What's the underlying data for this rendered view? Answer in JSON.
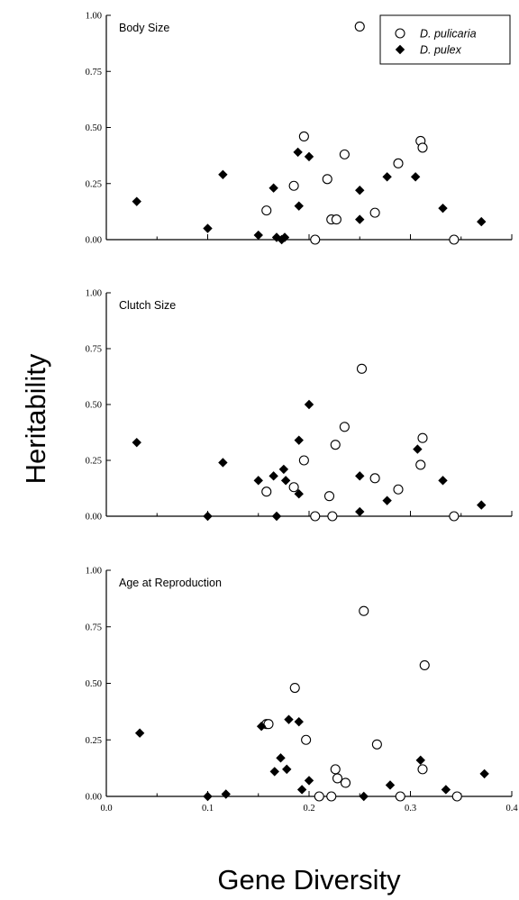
{
  "chart_data": {
    "type": "scatter",
    "x_axis_label": "Gene Diversity",
    "y_axis_label": "Heritability",
    "xlim": [
      0.0,
      0.4
    ],
    "ylim": [
      0.0,
      1.0
    ],
    "x_ticks": [
      "0.0",
      "0.1",
      "0.2",
      "0.3",
      "0.4"
    ],
    "y_ticks": [
      "0.00",
      "0.25",
      "0.50",
      "0.75",
      "1.00"
    ],
    "grid": false,
    "legend": {
      "placement": "top-right of first panel",
      "entries": [
        {
          "name": "D. pulicaria",
          "marker": "open-circle"
        },
        {
          "name": "D. pulex",
          "marker": "filled-diamond"
        }
      ]
    },
    "panels": [
      {
        "title": "Body Size",
        "show_x_tick_labels": false,
        "series": [
          {
            "name": "D. pulicaria",
            "points": [
              [
                0.25,
                0.95
              ],
              [
                0.195,
                0.46
              ],
              [
                0.31,
                0.44
              ],
              [
                0.312,
                0.41
              ],
              [
                0.235,
                0.38
              ],
              [
                0.288,
                0.34
              ],
              [
                0.218,
                0.27
              ],
              [
                0.185,
                0.24
              ],
              [
                0.158,
                0.13
              ],
              [
                0.265,
                0.12
              ],
              [
                0.222,
                0.09
              ],
              [
                0.227,
                0.09
              ],
              [
                0.206,
                0.0
              ],
              [
                0.343,
                0.0
              ]
            ]
          },
          {
            "name": "D. pulex",
            "points": [
              [
                0.03,
                0.17
              ],
              [
                0.1,
                0.05
              ],
              [
                0.115,
                0.29
              ],
              [
                0.15,
                0.02
              ],
              [
                0.165,
                0.23
              ],
              [
                0.168,
                0.01
              ],
              [
                0.173,
                0.0
              ],
              [
                0.176,
                0.01
              ],
              [
                0.189,
                0.39
              ],
              [
                0.2,
                0.37
              ],
              [
                0.19,
                0.15
              ],
              [
                0.25,
                0.22
              ],
              [
                0.25,
                0.09
              ],
              [
                0.277,
                0.28
              ],
              [
                0.305,
                0.28
              ],
              [
                0.332,
                0.14
              ],
              [
                0.37,
                0.08
              ]
            ]
          }
        ]
      },
      {
        "title": "Clutch Size",
        "show_x_tick_labels": false,
        "series": [
          {
            "name": "D. pulicaria",
            "points": [
              [
                0.252,
                0.66
              ],
              [
                0.235,
                0.4
              ],
              [
                0.312,
                0.35
              ],
              [
                0.226,
                0.32
              ],
              [
                0.195,
                0.25
              ],
              [
                0.31,
                0.23
              ],
              [
                0.265,
                0.17
              ],
              [
                0.185,
                0.13
              ],
              [
                0.288,
                0.12
              ],
              [
                0.158,
                0.11
              ],
              [
                0.22,
                0.09
              ],
              [
                0.206,
                0.0
              ],
              [
                0.223,
                0.0
              ],
              [
                0.343,
                0.0
              ]
            ]
          },
          {
            "name": "D. pulex",
            "points": [
              [
                0.03,
                0.33
              ],
              [
                0.1,
                0.0
              ],
              [
                0.115,
                0.24
              ],
              [
                0.15,
                0.16
              ],
              [
                0.165,
                0.18
              ],
              [
                0.175,
                0.21
              ],
              [
                0.177,
                0.16
              ],
              [
                0.168,
                0.0
              ],
              [
                0.19,
                0.34
              ],
              [
                0.2,
                0.5
              ],
              [
                0.19,
                0.1
              ],
              [
                0.25,
                0.18
              ],
              [
                0.25,
                0.02
              ],
              [
                0.277,
                0.07
              ],
              [
                0.307,
                0.3
              ],
              [
                0.332,
                0.16
              ],
              [
                0.37,
                0.05
              ]
            ]
          }
        ]
      },
      {
        "title": "Age at Reproduction",
        "show_x_tick_labels": true,
        "series": [
          {
            "name": "D. pulicaria",
            "points": [
              [
                0.254,
                0.82
              ],
              [
                0.314,
                0.58
              ],
              [
                0.186,
                0.48
              ],
              [
                0.158,
                0.32
              ],
              [
                0.16,
                0.32
              ],
              [
                0.197,
                0.25
              ],
              [
                0.267,
                0.23
              ],
              [
                0.226,
                0.12
              ],
              [
                0.312,
                0.12
              ],
              [
                0.228,
                0.08
              ],
              [
                0.236,
                0.06
              ],
              [
                0.21,
                0.0
              ],
              [
                0.222,
                0.0
              ],
              [
                0.29,
                0.0
              ],
              [
                0.346,
                0.0
              ]
            ]
          },
          {
            "name": "D. pulex",
            "points": [
              [
                0.033,
                0.28
              ],
              [
                0.1,
                0.0
              ],
              [
                0.118,
                0.01
              ],
              [
                0.153,
                0.31
              ],
              [
                0.166,
                0.11
              ],
              [
                0.172,
                0.17
              ],
              [
                0.178,
                0.12
              ],
              [
                0.18,
                0.34
              ],
              [
                0.19,
                0.33
              ],
              [
                0.193,
                0.03
              ],
              [
                0.2,
                0.07
              ],
              [
                0.254,
                0.0
              ],
              [
                0.28,
                0.05
              ],
              [
                0.31,
                0.16
              ],
              [
                0.335,
                0.03
              ],
              [
                0.373,
                0.1
              ]
            ]
          }
        ]
      }
    ]
  }
}
